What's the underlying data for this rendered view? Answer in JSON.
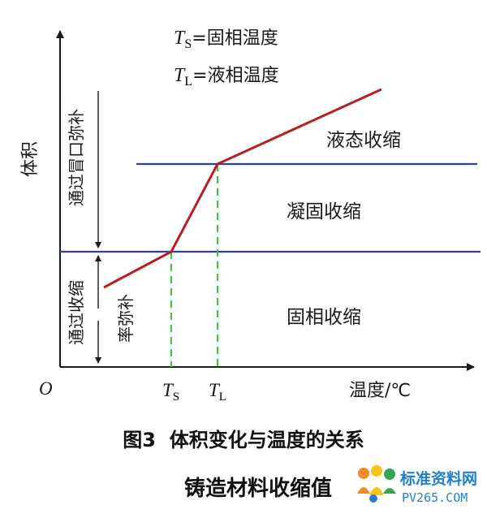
{
  "legend": {
    "ts_symbol": "T",
    "ts_sub": "S",
    "ts_text": "=固相温度",
    "tl_symbol": "T",
    "tl_sub": "L",
    "tl_text": "=液相温度"
  },
  "axes": {
    "y_label": "体积",
    "x_label": "温度/℃",
    "origin": "O",
    "ts_tick": "T",
    "ts_tick_sub": "S",
    "tl_tick": "T",
    "tl_tick_sub": "L"
  },
  "regions": {
    "liquid": "液态收缩",
    "solidifying": "凝固收缩",
    "solid": "固相收缩"
  },
  "side_labels": {
    "riser": "通过冒口弥补",
    "shrink_allowance": "通过收缩",
    "rate_comp": "率弥补"
  },
  "caption": "图3  体积变化与温度的关系",
  "subcaption": "铸造材料收缩值",
  "watermark": {
    "title": "标准资料网",
    "url": "PV265.COM"
  },
  "colors": {
    "curve": "#b22222",
    "hline": "#2a3fb0",
    "dash": "#33cc33",
    "axis": "#1a1a1a"
  }
}
